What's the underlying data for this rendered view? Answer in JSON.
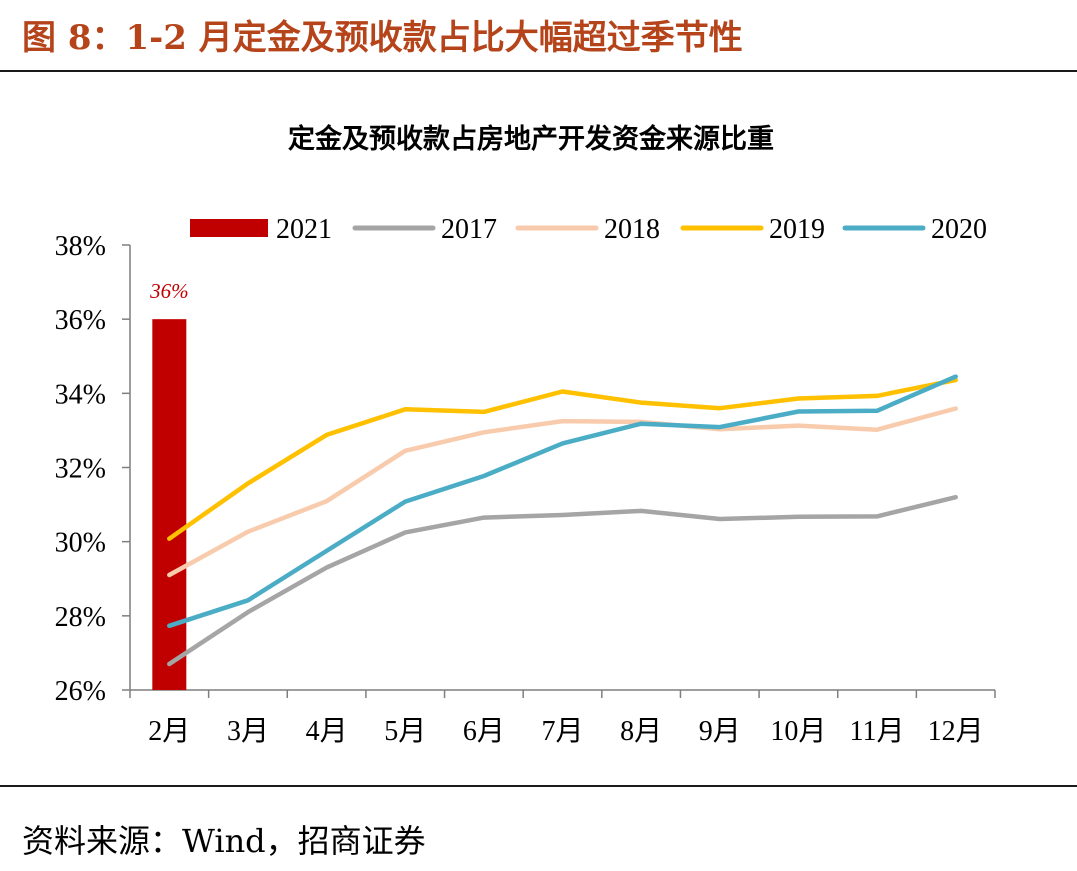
{
  "figure": {
    "title": "图 8：1-2 月定金及预收款占比大幅超过季节性",
    "source": "资料来源：Wind，招商证券"
  },
  "colors": {
    "figure_title": "#b5441a",
    "axis": "#7f7f7f"
  },
  "chart_data": {
    "type": "line",
    "title": "定金及预收款占房地产开发资金来源比重",
    "xlabel": "",
    "ylabel": "",
    "categories": [
      "2月",
      "3月",
      "4月",
      "5月",
      "6月",
      "7月",
      "8月",
      "9月",
      "10月",
      "11月",
      "12月"
    ],
    "ylim": [
      0.26,
      0.38
    ],
    "yticks": [
      0.26,
      0.28,
      0.3,
      0.32,
      0.34,
      0.36,
      0.38
    ],
    "ytick_labels": [
      "26%",
      "28%",
      "30%",
      "32%",
      "34%",
      "36%",
      "38%"
    ],
    "grid": false,
    "legend_position": "top",
    "bar_series": {
      "name": "2021",
      "type": "bar",
      "color": "#c00000",
      "values": [
        0.36,
        null,
        null,
        null,
        null,
        null,
        null,
        null,
        null,
        null,
        null
      ],
      "data_labels": [
        "36%",
        null,
        null,
        null,
        null,
        null,
        null,
        null,
        null,
        null,
        null
      ]
    },
    "series": [
      {
        "name": "2017",
        "color": "#a5a5a5",
        "values": [
          0.267,
          0.281,
          0.293,
          0.3025,
          0.3065,
          0.3072,
          0.3083,
          0.3061,
          0.3067,
          0.3068,
          0.312
        ]
      },
      {
        "name": "2018",
        "color": "#f8cbad",
        "values": [
          0.291,
          0.3027,
          0.3109,
          0.3245,
          0.3295,
          0.3325,
          0.3323,
          0.3303,
          0.3313,
          0.3302,
          0.3359
        ]
      },
      {
        "name": "2019",
        "color": "#ffc000",
        "values": [
          0.3008,
          0.3157,
          0.3288,
          0.3357,
          0.335,
          0.3405,
          0.3375,
          0.336,
          0.3386,
          0.3393,
          0.3436
        ]
      },
      {
        "name": "2020",
        "color": "#4bacc6",
        "values": [
          0.2773,
          0.2842,
          0.2975,
          0.3108,
          0.3177,
          0.3265,
          0.3318,
          0.3309,
          0.3351,
          0.3353,
          0.3445
        ]
      }
    ]
  }
}
